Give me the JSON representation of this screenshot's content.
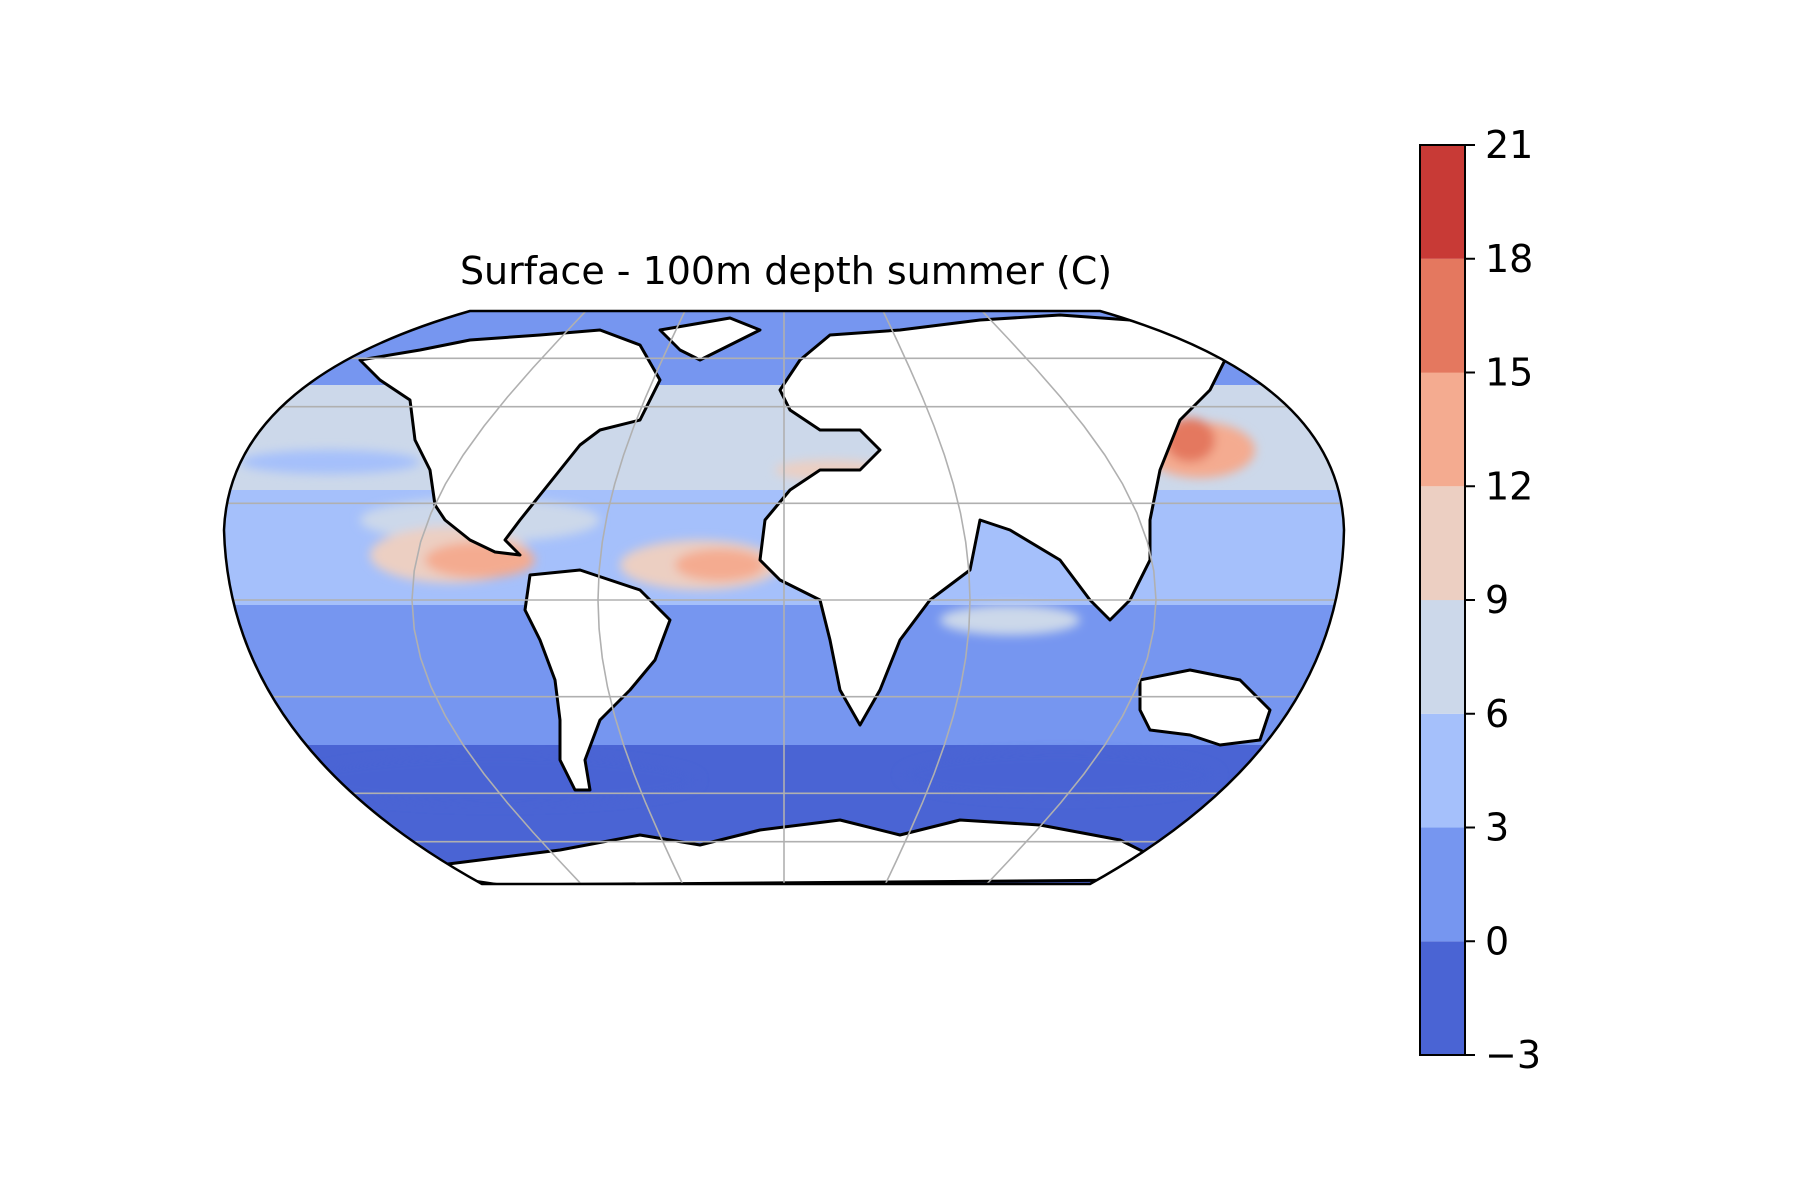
{
  "title": "Surface - 100m depth summer (C)",
  "map": {
    "projection": "Robinson",
    "central_longitude": 0,
    "land_fill": "#ffffff",
    "coastline_color": "#000000",
    "gridline_color": "#b0b0b0",
    "meridians_deg": [
      -120,
      -60,
      0,
      60,
      120
    ],
    "parallels_deg": [
      -75,
      -60,
      -30,
      0,
      30,
      60,
      75
    ],
    "base_value_range": [
      0,
      3
    ],
    "anomalies": [
      {
        "region": "East Pacific tropical",
        "value_range": [
          12,
          15
        ]
      },
      {
        "region": "East Atlantic tropical",
        "value_range": [
          12,
          15
        ]
      },
      {
        "region": "Northwest Pacific / Japan",
        "value_range": [
          15,
          18
        ]
      },
      {
        "region": "Mediterranean",
        "value_range": [
          9,
          12
        ]
      },
      {
        "region": "Southern Ocean",
        "value_range": [
          -3,
          0
        ]
      }
    ]
  },
  "colorbar": {
    "levels": [
      -3,
      0,
      3,
      6,
      9,
      12,
      15,
      18,
      21
    ],
    "tick_labels": [
      "−3",
      "0",
      "3",
      "6",
      "9",
      "12",
      "15",
      "18",
      "21"
    ],
    "colors": [
      "#4a64d4",
      "#7696f0",
      "#a5c0fb",
      "#ccd8ea",
      "#eccfc2",
      "#f4ab90",
      "#e4785f",
      "#c83a36"
    ]
  },
  "chart_data": {
    "type": "heatmap",
    "title": "Surface - 100m depth summer (C)",
    "variable": "Surface minus 100m depth temperature, summer",
    "units": "C",
    "colorbar_levels": [
      -3,
      0,
      3,
      6,
      9,
      12,
      15,
      18,
      21
    ],
    "value_range": [
      -3,
      21
    ],
    "legend_position": "right"
  }
}
